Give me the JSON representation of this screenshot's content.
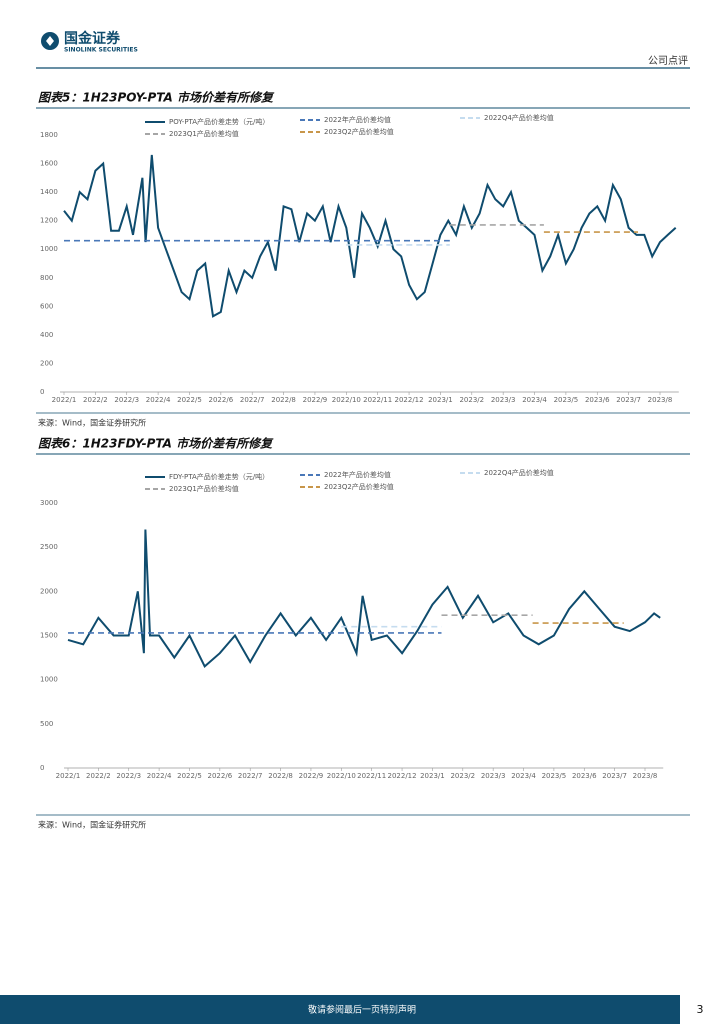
{
  "header": {
    "logo_cn": "国金证券",
    "logo_en": "SINOLINK SECURITIES",
    "section": "公司点评"
  },
  "chart_data": [
    {
      "type": "line",
      "title": "图表5：1H23POY-PTA 市场价差有所修复",
      "source": "来源：Wind，国金证券研究所",
      "xlim": [
        0,
        19.6
      ],
      "ylim": [
        0,
        1800
      ],
      "yticks": [
        0,
        200,
        400,
        600,
        800,
        1000,
        1200,
        1400,
        1600,
        1800
      ],
      "xticks": [
        {
          "value": 0,
          "label": "2022/1"
        },
        {
          "value": 1,
          "label": "2022/2"
        },
        {
          "value": 2,
          "label": "2022/3"
        },
        {
          "value": 3,
          "label": "2022/4"
        },
        {
          "value": 4,
          "label": "2022/5"
        },
        {
          "value": 5,
          "label": "2022/6"
        },
        {
          "value": 6,
          "label": "2022/7"
        },
        {
          "value": 7,
          "label": "2022/8"
        },
        {
          "value": 8,
          "label": "2022/9"
        },
        {
          "value": 9,
          "label": "2022/10"
        },
        {
          "value": 10,
          "label": "2022/11"
        },
        {
          "value": 11,
          "label": "2022/12"
        },
        {
          "value": 12,
          "label": "2023/1"
        },
        {
          "value": 13,
          "label": "2023/2"
        },
        {
          "value": 14,
          "label": "2023/3"
        },
        {
          "value": 15,
          "label": "2023/4"
        },
        {
          "value": 16,
          "label": "2023/5"
        },
        {
          "value": 17,
          "label": "2023/6"
        },
        {
          "value": 18,
          "label": "2023/7"
        },
        {
          "value": 19,
          "label": "2023/8"
        }
      ],
      "series": [
        {
          "name": "POY-PTA产品价差走势（元/吨）",
          "color": "#0f4c6e",
          "dash": false,
          "x": [
            0,
            0.25,
            0.5,
            0.75,
            1,
            1.25,
            1.5,
            1.75,
            2,
            2.2,
            2.5,
            2.6,
            2.8,
            3,
            3.25,
            3.5,
            3.75,
            4,
            4.25,
            4.5,
            4.75,
            5,
            5.25,
            5.5,
            5.75,
            6,
            6.25,
            6.5,
            6.75,
            7,
            7.25,
            7.5,
            7.75,
            8,
            8.25,
            8.5,
            8.75,
            9,
            9.25,
            9.5,
            9.75,
            10,
            10.25,
            10.5,
            10.75,
            11,
            11.25,
            11.5,
            11.75,
            12,
            12.25,
            12.5,
            12.75,
            13,
            13.25,
            13.5,
            13.75,
            14,
            14.25,
            14.5,
            14.75,
            15,
            15.25,
            15.5,
            15.75,
            16,
            16.25,
            16.5,
            16.75,
            17,
            17.25,
            17.5,
            17.75,
            18,
            18.25,
            18.5,
            18.75,
            19,
            19.25,
            19.5
          ],
          "values": [
            1270,
            1200,
            1400,
            1350,
            1550,
            1600,
            1130,
            1130,
            1300,
            1100,
            1500,
            1050,
            1660,
            1150,
            1000,
            850,
            700,
            650,
            850,
            900,
            530,
            560,
            850,
            700,
            850,
            800,
            950,
            1050,
            850,
            1300,
            1280,
            1050,
            1250,
            1200,
            1300,
            1050,
            1300,
            1150,
            800,
            1250,
            1150,
            1020,
            1200,
            1000,
            950,
            750,
            650,
            700,
            900,
            1100,
            1200,
            1100,
            1300,
            1150,
            1250,
            1450,
            1350,
            1300,
            1400,
            1200,
            1150,
            1100,
            850,
            950,
            1100,
            900,
            1000,
            1150,
            1250,
            1300,
            1200,
            1450,
            1350,
            1150,
            1100,
            1100,
            950,
            1050,
            1100,
            1150
          ]
        },
        {
          "name": "2022年产品价差均值",
          "color": "#4a78b8",
          "dash": true,
          "x": [
            0,
            12.3
          ],
          "values": [
            1060,
            1060
          ]
        },
        {
          "name": "2022Q4产品价差均值",
          "color": "#c5dcef",
          "dash": true,
          "x": [
            9,
            12.3
          ],
          "values": [
            1030,
            1030
          ]
        },
        {
          "name": "2023Q1产品价差均值",
          "color": "#a6a6a6",
          "dash": true,
          "x": [
            12.3,
            15.3
          ],
          "values": [
            1170,
            1170
          ]
        },
        {
          "name": "2023Q2产品价差均值",
          "color": "#c8964a",
          "dash": true,
          "x": [
            15.3,
            18.3
          ],
          "values": [
            1120,
            1120
          ]
        }
      ]
    },
    {
      "type": "line",
      "title": "图表6：1H23FDY-PTA 市场价差有所修复",
      "source": "来源：Wind，国金证券研究所",
      "xlim": [
        0,
        19.6
      ],
      "ylim": [
        0,
        3000
      ],
      "yticks": [
        0,
        500,
        1000,
        1500,
        2000,
        2500,
        3000
      ],
      "xticks": [
        {
          "value": 0,
          "label": "2022/1"
        },
        {
          "value": 1,
          "label": "2022/2"
        },
        {
          "value": 2,
          "label": "2022/3"
        },
        {
          "value": 3,
          "label": "2022/4"
        },
        {
          "value": 4,
          "label": "2022/5"
        },
        {
          "value": 5,
          "label": "2022/6"
        },
        {
          "value": 6,
          "label": "2022/7"
        },
        {
          "value": 7,
          "label": "2022/8"
        },
        {
          "value": 8,
          "label": "2022/9"
        },
        {
          "value": 9,
          "label": "2022/10"
        },
        {
          "value": 10,
          "label": "2022/11"
        },
        {
          "value": 11,
          "label": "2022/12"
        },
        {
          "value": 12,
          "label": "2023/1"
        },
        {
          "value": 13,
          "label": "2023/2"
        },
        {
          "value": 14,
          "label": "2023/3"
        },
        {
          "value": 15,
          "label": "2023/4"
        },
        {
          "value": 16,
          "label": "2023/5"
        },
        {
          "value": 17,
          "label": "2023/6"
        },
        {
          "value": 18,
          "label": "2023/7"
        },
        {
          "value": 19,
          "label": "2023/8"
        }
      ],
      "series": [
        {
          "name": "FDY-PTA产品价差走势（元/吨）",
          "color": "#0f4c6e",
          "dash": false,
          "x": [
            0,
            0.5,
            1,
            1.5,
            2,
            2.3,
            2.5,
            2.55,
            2.7,
            3,
            3.5,
            4,
            4.5,
            5,
            5.5,
            6,
            6.5,
            7,
            7.5,
            8,
            8.5,
            9,
            9.5,
            9.7,
            10,
            10.5,
            11,
            11.5,
            12,
            12.5,
            13,
            13.5,
            14,
            14.5,
            15,
            15.5,
            16,
            16.5,
            17,
            17.5,
            18,
            18.5,
            19,
            19.3,
            19.5
          ],
          "values": [
            1450,
            1400,
            1700,
            1500,
            1500,
            2000,
            1300,
            2700,
            1500,
            1500,
            1250,
            1500,
            1150,
            1300,
            1500,
            1200,
            1500,
            1750,
            1500,
            1700,
            1450,
            1700,
            1300,
            1950,
            1450,
            1500,
            1300,
            1550,
            1850,
            2050,
            1700,
            1950,
            1650,
            1750,
            1500,
            1400,
            1500,
            1800,
            2000,
            1800,
            1600,
            1550,
            1650,
            1750,
            1700
          ]
        },
        {
          "name": "2022年产品价差均值",
          "color": "#4a78b8",
          "dash": true,
          "x": [
            0,
            12.3
          ],
          "values": [
            1530,
            1530
          ]
        },
        {
          "name": "2022Q4产品价差均值",
          "color": "#c5dcef",
          "dash": true,
          "x": [
            9,
            12.3
          ],
          "values": [
            1600,
            1600
          ]
        },
        {
          "name": "2023Q1产品价差均值",
          "color": "#a6a6a6",
          "dash": true,
          "x": [
            12.3,
            15.3
          ],
          "values": [
            1730,
            1730
          ]
        },
        {
          "name": "2023Q2产品价差均值",
          "color": "#c8964a",
          "dash": true,
          "x": [
            15.3,
            18.3
          ],
          "values": [
            1640,
            1640
          ]
        }
      ]
    }
  ],
  "footer": {
    "notice": "敬请参阅最后一页特别声明",
    "page": "3"
  }
}
